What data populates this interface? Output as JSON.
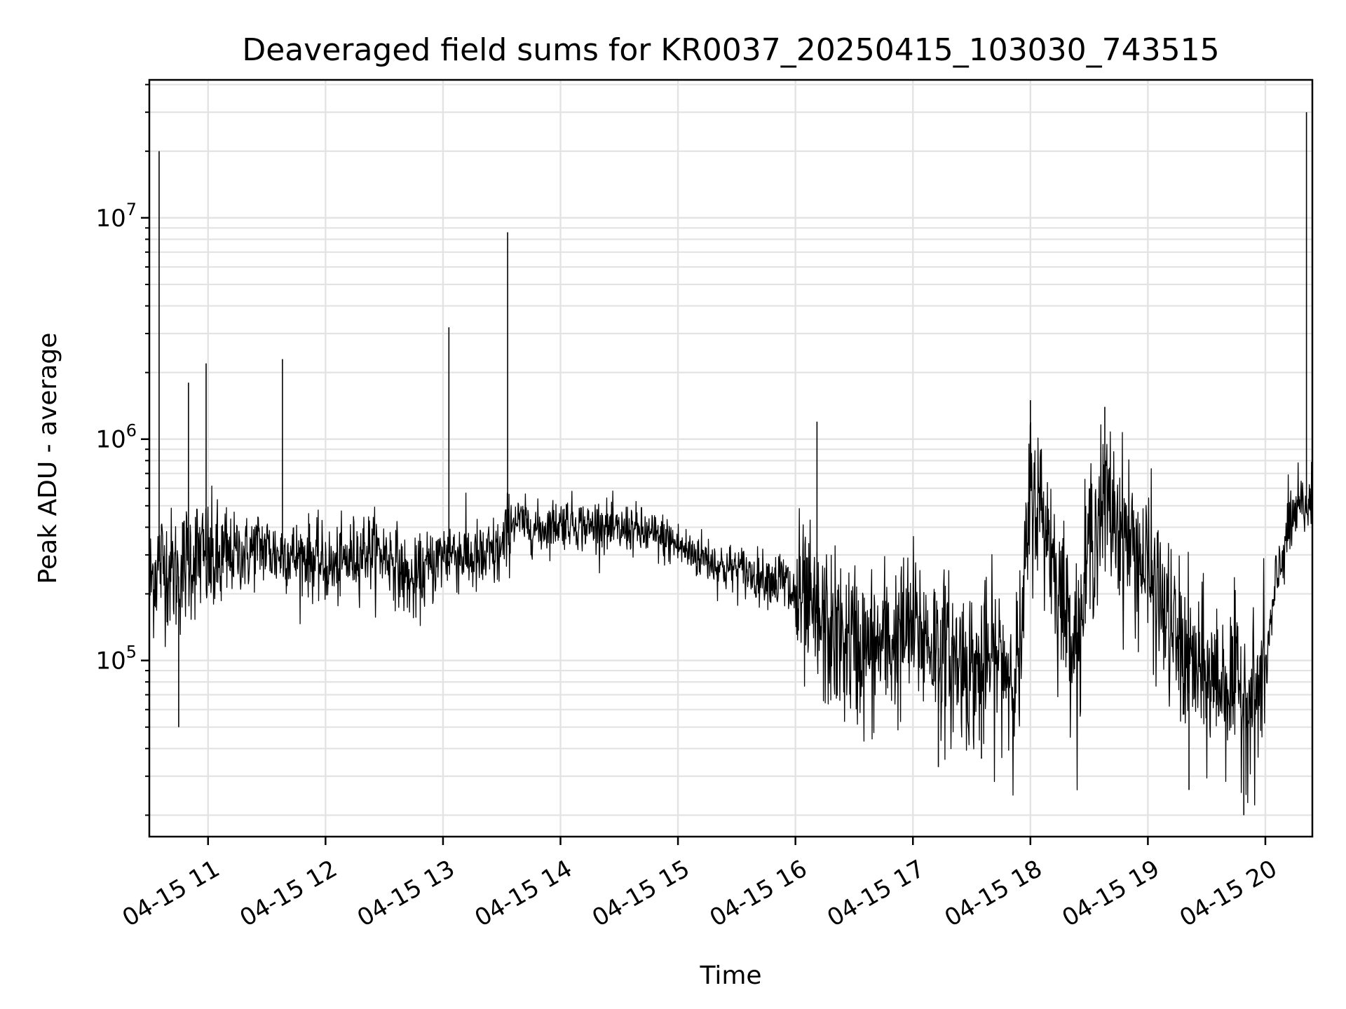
{
  "chart_data": {
    "type": "line",
    "title": "Deaveraged field sums for KR0037_20250415_103030_743515",
    "xlabel": "Time",
    "ylabel": "Peak ADU - average",
    "xlim": [
      "2025-04-15 10:30",
      "2025-04-15 20:24"
    ],
    "ylim": [
      16000,
      42000000
    ],
    "yscale": "log",
    "grid": true,
    "series_color": "#000000",
    "x_ticks": [
      {
        "t": "2025-04-15 11:00",
        "label": "04-15 11"
      },
      {
        "t": "2025-04-15 12:00",
        "label": "04-15 12"
      },
      {
        "t": "2025-04-15 13:00",
        "label": "04-15 13"
      },
      {
        "t": "2025-04-15 14:00",
        "label": "04-15 14"
      },
      {
        "t": "2025-04-15 15:00",
        "label": "04-15 15"
      },
      {
        "t": "2025-04-15 16:00",
        "label": "04-15 16"
      },
      {
        "t": "2025-04-15 17:00",
        "label": "04-15 17"
      },
      {
        "t": "2025-04-15 18:00",
        "label": "04-15 18"
      },
      {
        "t": "2025-04-15 19:00",
        "label": "04-15 19"
      },
      {
        "t": "2025-04-15 20:00",
        "label": "04-15 20"
      }
    ],
    "y_ticks": [
      {
        "value": 100000,
        "base": "10",
        "exp": "5"
      },
      {
        "value": 1000000,
        "base": "10",
        "exp": "6"
      },
      {
        "value": 10000000,
        "base": "10",
        "exp": "7"
      }
    ],
    "series": [
      {
        "x": [
          "2025-04-15 10:30",
          "2025-04-15 10:35",
          "2025-04-15 10:40",
          "2025-04-15 10:45",
          "2025-04-15 10:50",
          "2025-04-15 10:55",
          "2025-04-15 11:00",
          "2025-04-15 11:05",
          "2025-04-15 11:10",
          "2025-04-15 11:15",
          "2025-04-15 11:20",
          "2025-04-15 11:25",
          "2025-04-15 11:30",
          "2025-04-15 11:35",
          "2025-04-15 11:40",
          "2025-04-15 11:45",
          "2025-04-15 11:50",
          "2025-04-15 11:55",
          "2025-04-15 12:00",
          "2025-04-15 12:05",
          "2025-04-15 12:10",
          "2025-04-15 12:15",
          "2025-04-15 12:20",
          "2025-04-15 12:25",
          "2025-04-15 12:30",
          "2025-04-15 12:35",
          "2025-04-15 12:40",
          "2025-04-15 12:45",
          "2025-04-15 12:50",
          "2025-04-15 12:55",
          "2025-04-15 13:00",
          "2025-04-15 13:05",
          "2025-04-15 13:10",
          "2025-04-15 13:15",
          "2025-04-15 13:20",
          "2025-04-15 13:25",
          "2025-04-15 13:30",
          "2025-04-15 13:35",
          "2025-04-15 13:40",
          "2025-04-15 13:45",
          "2025-04-15 13:50",
          "2025-04-15 13:55",
          "2025-04-15 14:00",
          "2025-04-15 14:05",
          "2025-04-15 14:10",
          "2025-04-15 14:15",
          "2025-04-15 14:20",
          "2025-04-15 14:25",
          "2025-04-15 14:30",
          "2025-04-15 14:35",
          "2025-04-15 14:40",
          "2025-04-15 14:45",
          "2025-04-15 14:50",
          "2025-04-15 14:55",
          "2025-04-15 15:00",
          "2025-04-15 15:05",
          "2025-04-15 15:10",
          "2025-04-15 15:15",
          "2025-04-15 15:20",
          "2025-04-15 15:25",
          "2025-04-15 15:30",
          "2025-04-15 15:35",
          "2025-04-15 15:40",
          "2025-04-15 15:45",
          "2025-04-15 15:50",
          "2025-04-15 15:55",
          "2025-04-15 16:00",
          "2025-04-15 16:05",
          "2025-04-15 16:10",
          "2025-04-15 16:15",
          "2025-04-15 16:20",
          "2025-04-15 16:25",
          "2025-04-15 16:30",
          "2025-04-15 16:35",
          "2025-04-15 16:40",
          "2025-04-15 16:45",
          "2025-04-15 16:50",
          "2025-04-15 16:55",
          "2025-04-15 17:00",
          "2025-04-15 17:05",
          "2025-04-15 17:10",
          "2025-04-15 17:15",
          "2025-04-15 17:20",
          "2025-04-15 17:25",
          "2025-04-15 17:30",
          "2025-04-15 17:35",
          "2025-04-15 17:40",
          "2025-04-15 17:45",
          "2025-04-15 17:50",
          "2025-04-15 17:55",
          "2025-04-15 18:00",
          "2025-04-15 18:05",
          "2025-04-15 18:10",
          "2025-04-15 18:15",
          "2025-04-15 18:20",
          "2025-04-15 18:25",
          "2025-04-15 18:30",
          "2025-04-15 18:35",
          "2025-04-15 18:40",
          "2025-04-15 18:45",
          "2025-04-15 18:50",
          "2025-04-15 18:55",
          "2025-04-15 19:00",
          "2025-04-15 19:05",
          "2025-04-15 19:10",
          "2025-04-15 19:15",
          "2025-04-15 19:20",
          "2025-04-15 19:25",
          "2025-04-15 19:30",
          "2025-04-15 19:35",
          "2025-04-15 19:40",
          "2025-04-15 19:45",
          "2025-04-15 19:50",
          "2025-04-15 19:55",
          "2025-04-15 20:00",
          "2025-04-15 20:05",
          "2025-04-15 20:10",
          "2025-04-15 20:15",
          "2025-04-15 20:20",
          "2025-04-15 20:24"
        ],
        "y": [
          220000,
          280000,
          260000,
          240000,
          290000,
          300000,
          280000,
          270000,
          290000,
          310000,
          300000,
          330000,
          320000,
          300000,
          310000,
          290000,
          300000,
          280000,
          270000,
          260000,
          280000,
          300000,
          320000,
          310000,
          300000,
          290000,
          240000,
          220000,
          250000,
          270000,
          300000,
          310000,
          300000,
          290000,
          280000,
          300000,
          310000,
          430000,
          420000,
          400000,
          390000,
          410000,
          420000,
          430000,
          410000,
          400000,
          420000,
          390000,
          380000,
          400000,
          380000,
          370000,
          360000,
          350000,
          330000,
          310000,
          300000,
          290000,
          270000,
          260000,
          260000,
          250000,
          240000,
          240000,
          230000,
          220000,
          190000,
          170000,
          150000,
          140000,
          130000,
          120000,
          120000,
          110000,
          110000,
          120000,
          120000,
          130000,
          140000,
          130000,
          120000,
          110000,
          100000,
          100000,
          90000,
          90000,
          100000,
          100000,
          90000,
          100000,
          600000,
          500000,
          350000,
          200000,
          150000,
          120000,
          350000,
          450000,
          500000,
          420000,
          350000,
          300000,
          250000,
          200000,
          150000,
          120000,
          100000,
          90000,
          80000,
          85000,
          80000,
          75000,
          70000,
          65000,
          90000,
          200000,
          350000,
          450000,
          500000,
          500000
        ]
      }
    ],
    "spikes": [
      {
        "x": "2025-04-15 10:35",
        "y": 20000000
      },
      {
        "x": "2025-04-15 10:50",
        "y": 1800000
      },
      {
        "x": "2025-04-15 10:59",
        "y": 2200000
      },
      {
        "x": "2025-04-15 11:38",
        "y": 2300000
      },
      {
        "x": "2025-04-15 13:03",
        "y": 3200000
      },
      {
        "x": "2025-04-15 13:33",
        "y": 8600000
      },
      {
        "x": "2025-04-15 16:11",
        "y": 1200000
      },
      {
        "x": "2025-04-15 18:00",
        "y": 1500000
      },
      {
        "x": "2025-04-15 18:38",
        "y": 1400000
      },
      {
        "x": "2025-04-15 20:21",
        "y": 30000000
      }
    ],
    "dips": [
      {
        "x": "2025-04-15 10:45",
        "y": 50000
      },
      {
        "x": "2025-04-15 17:13",
        "y": 33000
      },
      {
        "x": "2025-04-15 17:35",
        "y": 36000
      },
      {
        "x": "2025-04-15 19:21",
        "y": 26000
      },
      {
        "x": "2025-04-15 19:49",
        "y": 20000
      }
    ]
  }
}
